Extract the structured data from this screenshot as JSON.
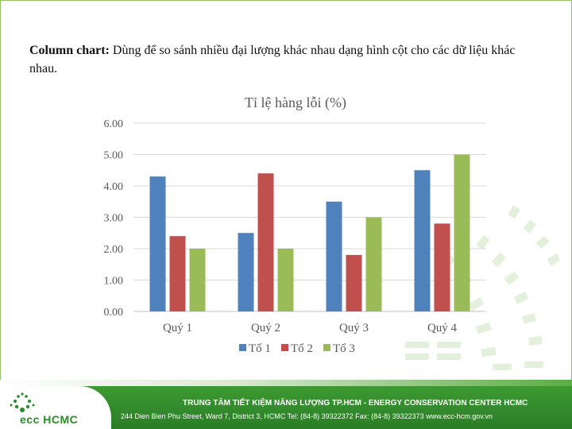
{
  "intro": {
    "lead": "Column chart:",
    "body": " Dùng để so sánh nhiều đại lượng khác nhau dạng hình cột cho các dữ liệu khác nhau."
  },
  "chart_data": {
    "type": "bar",
    "title": "Tỉ lệ hàng lỗi (%)",
    "xlabel": "",
    "ylabel": "",
    "categories": [
      "Quý 1",
      "Quý 2",
      "Quý 3",
      "Quý 4"
    ],
    "series": [
      {
        "name": "Tổ 1",
        "color": "#4f81bd",
        "values": [
          4.3,
          2.5,
          3.5,
          4.5
        ]
      },
      {
        "name": "Tổ 2",
        "color": "#c0504d",
        "values": [
          2.4,
          4.4,
          1.8,
          2.8
        ]
      },
      {
        "name": "Tổ 3",
        "color": "#9bbb59",
        "values": [
          2.0,
          2.0,
          3.0,
          5.0
        ]
      }
    ],
    "ylim": [
      0,
      6
    ],
    "yticks": [
      "0.00",
      "1.00",
      "2.00",
      "3.00",
      "4.00",
      "5.00",
      "6.00"
    ],
    "grid": true,
    "legend_position": "bottom"
  },
  "footer": {
    "logo_text": "ecc HCMC",
    "line1": "TRUNG TÂM TIẾT KIỆM NĂNG LƯỢNG TP.HCM  - ENERGY CONSERVATION CENTER HCMC",
    "line2": "244 Dien Bien Phu Street, Ward 7, District 3, HCMC   Tel: (84-8) 39322372   Fax: (84-8) 39322373   www.ecc-hcm.gov.vn"
  },
  "colors": {
    "accent_green": "#3d9a32",
    "grid": "#d9d9d9",
    "axis_text": "#595959"
  }
}
